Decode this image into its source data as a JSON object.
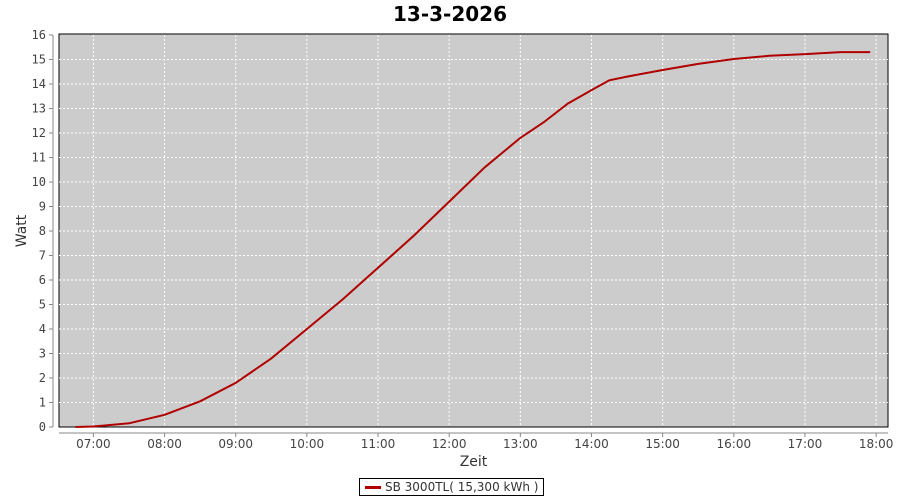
{
  "chart_data": {
    "type": "line",
    "title": "13-3-2026",
    "xlabel": "Zeit",
    "ylabel": "Watt",
    "xlim": [
      "06:31",
      "18:10"
    ],
    "ylim": [
      0,
      16
    ],
    "x_ticks": [
      "07:00",
      "08:00",
      "09:00",
      "10:00",
      "11:00",
      "12:00",
      "13:00",
      "14:00",
      "15:00",
      "16:00",
      "17:00",
      "18:00"
    ],
    "y_ticks": [
      0,
      1,
      2,
      3,
      4,
      5,
      6,
      7,
      8,
      9,
      10,
      11,
      12,
      13,
      14,
      15,
      16
    ],
    "grid": true,
    "legend_position": "bottom",
    "colors": {
      "series": "#b00000",
      "plot_bg": "#cccccc",
      "grid": "#ffffff"
    },
    "series": [
      {
        "name": "SB 3000TL( 15,300 kWh )",
        "x": [
          "06:45",
          "07:00",
          "07:30",
          "08:00",
          "08:30",
          "09:00",
          "09:30",
          "10:00",
          "10:30",
          "11:00",
          "11:30",
          "12:00",
          "12:30",
          "13:00",
          "13:20",
          "13:40",
          "14:00",
          "14:15",
          "14:30",
          "15:00",
          "15:30",
          "16:00",
          "16:30",
          "17:00",
          "17:30",
          "17:55"
        ],
        "y": [
          0,
          0.02,
          0.15,
          0.5,
          1.05,
          1.8,
          2.8,
          4.0,
          5.2,
          6.5,
          7.8,
          9.2,
          10.6,
          11.8,
          12.45,
          13.2,
          13.75,
          14.15,
          14.3,
          14.57,
          14.82,
          15.02,
          15.15,
          15.22,
          15.3,
          15.3
        ]
      }
    ]
  }
}
